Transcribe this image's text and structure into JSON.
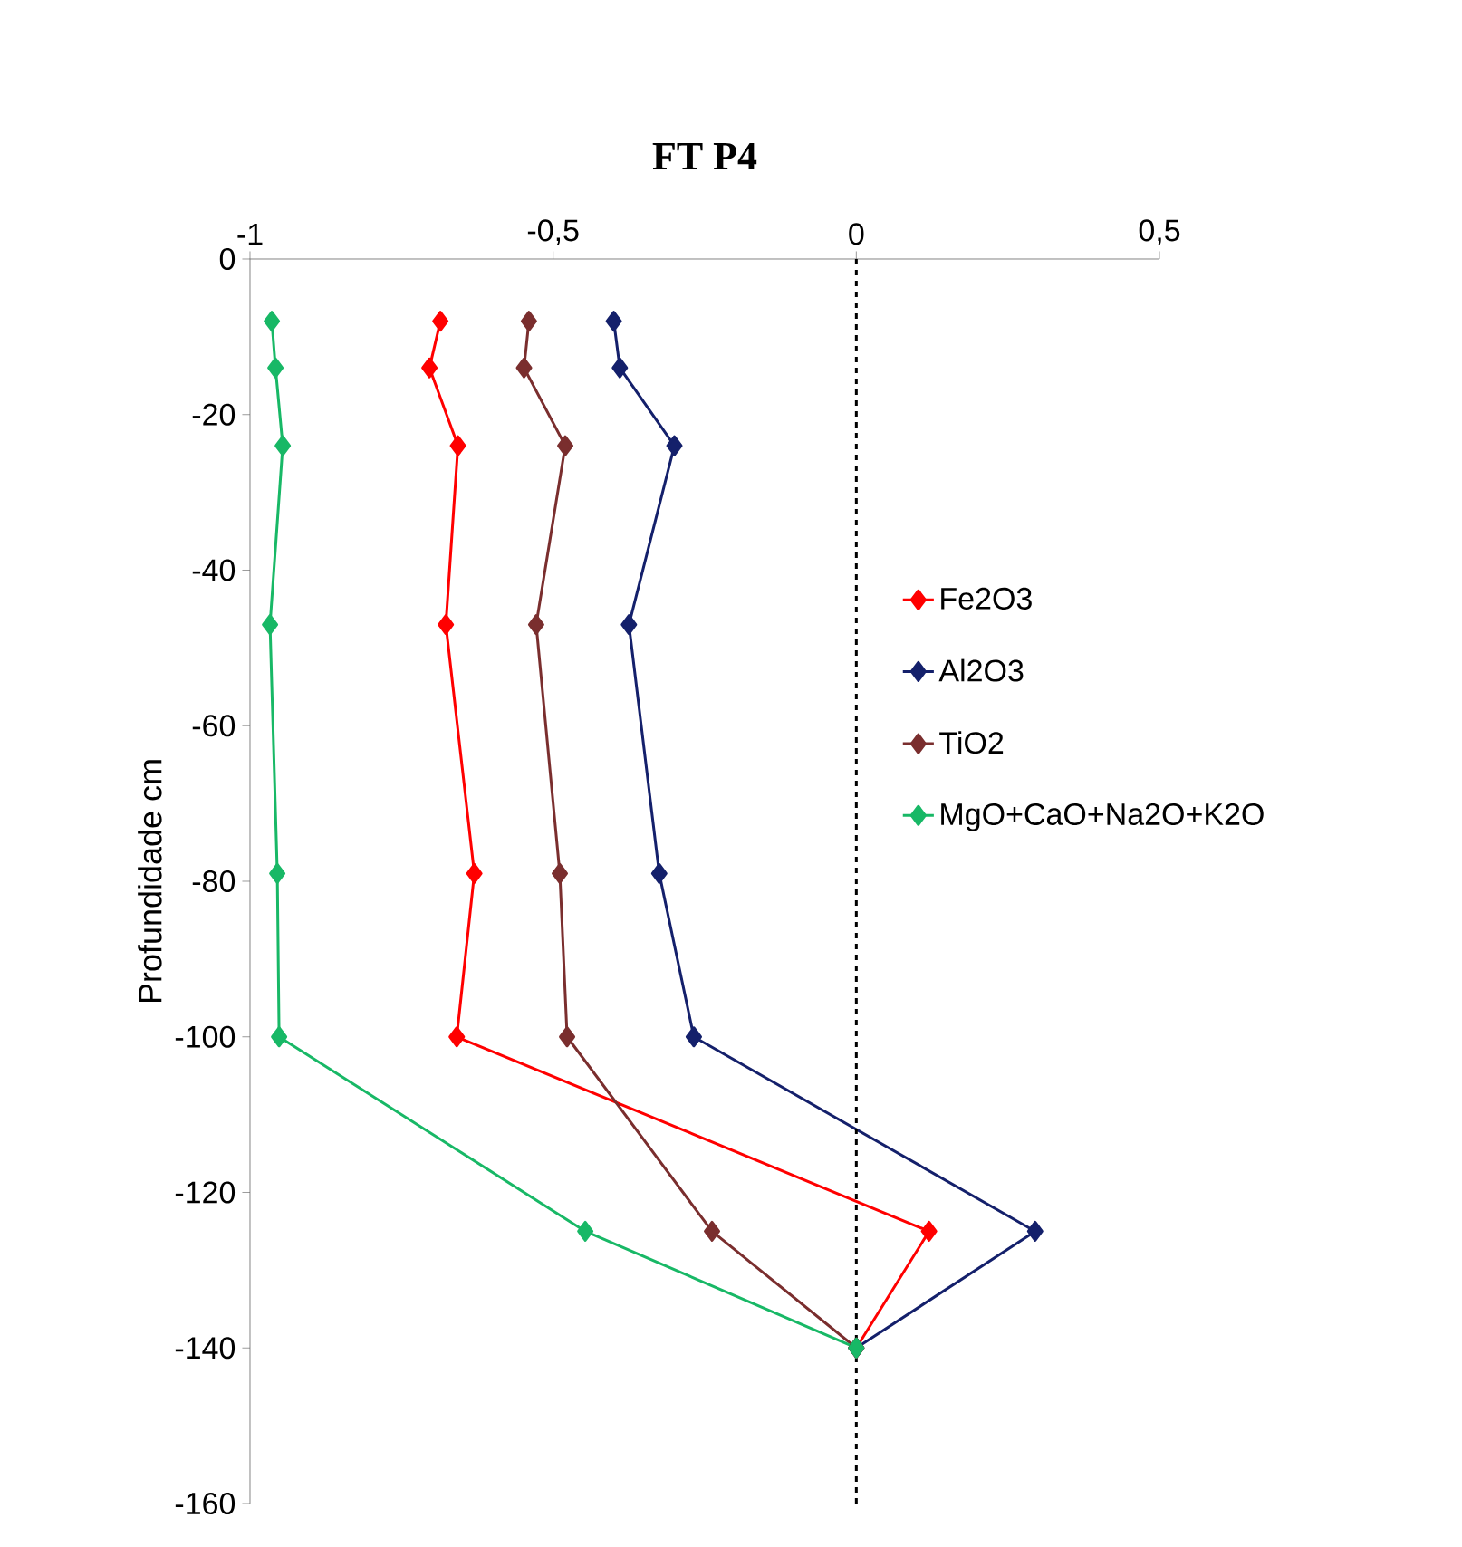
{
  "chart_data": {
    "type": "line",
    "title": "FT P4",
    "ylabel": "Profundidade cm",
    "xlim": [
      -1,
      0.5
    ],
    "xticks": [
      -1,
      {
        "value": -0.5,
        "label": "-0,5"
      },
      0,
      {
        "value": 0.5,
        "label": "0,5"
      }
    ],
    "ylim": [
      -160,
      0
    ],
    "yticks": [
      -160,
      -140,
      -120,
      -100,
      -80,
      -60,
      -40,
      -20,
      0
    ],
    "series": [
      {
        "name": "Fe2O3",
        "color": "#ff0000",
        "x": [
          -0.686,
          -0.704,
          -0.657,
          -0.677,
          -0.63,
          -0.659,
          0.12,
          0
        ],
        "values": [
          -8,
          -14,
          -24,
          -47,
          -79,
          -100,
          -125,
          -140
        ]
      },
      {
        "name": "Al2O3",
        "color": "#14206b",
        "x": [
          -0.4,
          -0.39,
          -0.3,
          -0.375,
          -0.325,
          -0.268,
          0.295,
          0
        ],
        "values": [
          -8,
          -14,
          -24,
          -47,
          -79,
          -100,
          -125,
          -140
        ]
      },
      {
        "name": "TiO2",
        "color": "#7a2e2e",
        "x": [
          -0.54,
          -0.548,
          -0.48,
          -0.528,
          -0.489,
          -0.477,
          -0.238,
          0
        ],
        "values": [
          -8,
          -14,
          -24,
          -47,
          -79,
          -100,
          -125,
          -140
        ]
      },
      {
        "name": "MgO+CaO+Na2O+K2O",
        "color": "#18b866",
        "x": [
          -0.964,
          -0.958,
          -0.946,
          -0.967,
          -0.955,
          -0.952,
          -0.447,
          0
        ],
        "values": [
          -8,
          -14,
          -24,
          -47,
          -79,
          -100,
          -125,
          -140
        ]
      }
    ],
    "ref_lines": [
      {
        "axis": "x",
        "value": 0,
        "color": "#000000",
        "line_style": "dashed"
      }
    ],
    "marker": "diamond",
    "line_style": "solid",
    "grid": false,
    "legend": "right"
  }
}
